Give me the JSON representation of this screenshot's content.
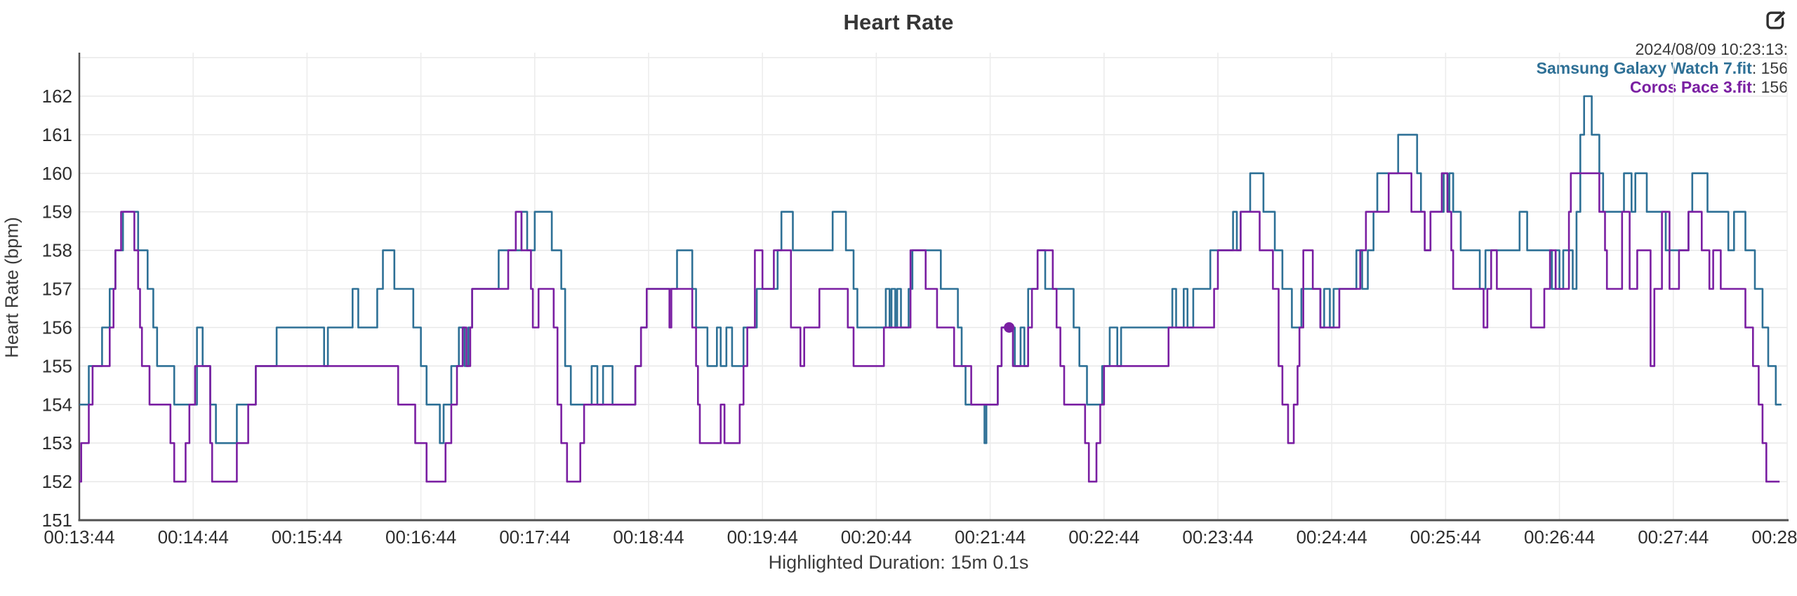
{
  "header": {
    "title": "Heart Rate"
  },
  "toolbar": {
    "edit_icon_name": "edit-square-pencil-icon"
  },
  "tooltip": {
    "timestamp": "2024/08/09 10:23:13:",
    "separator": ": ",
    "series": [
      {
        "label": "Samsung Galaxy Watch 7.fit",
        "value": "156"
      },
      {
        "label": "Coros Pace 3.fit",
        "value": "156"
      }
    ]
  },
  "footer": {
    "highlighted_duration": "Highlighted Duration: 15m 0.1s"
  },
  "chart_data": {
    "type": "line",
    "line_style": "step-after",
    "title": "Heart Rate",
    "xlabel": "",
    "ylabel": "Heart Rate (bpm)",
    "ylim": [
      151,
      163.2
    ],
    "y_ticks": [
      151,
      152,
      153,
      154,
      155,
      156,
      157,
      158,
      159,
      160,
      161,
      162
    ],
    "y_grid_extra": 163,
    "x_range_s": [
      0,
      900
    ],
    "x_tick_interval_s": 60,
    "x_ticks": [
      "00:13:44",
      "00:14:44",
      "00:15:44",
      "00:16:44",
      "00:17:44",
      "00:18:44",
      "00:19:44",
      "00:20:44",
      "00:21:44",
      "00:22:44",
      "00:23:44",
      "00:24:44",
      "00:25:44",
      "00:26:44",
      "00:27:44",
      "00:28:44"
    ],
    "grid": true,
    "legend_position": "top-right",
    "axis_color": "#515151",
    "grid_color": "#e8e8e8",
    "tick_label_color": "#2e2e2e",
    "highlight_point": {
      "series": "Coros Pace 3.fit",
      "t_s": 490,
      "value": 156
    },
    "series": [
      {
        "name": "Samsung Galaxy Watch 7.fit",
        "color": "#2e7096",
        "end_s": 897,
        "points": [
          [
            0,
            154
          ],
          [
            5,
            155
          ],
          [
            12,
            156
          ],
          [
            16,
            157
          ],
          [
            19,
            158
          ],
          [
            23,
            159
          ],
          [
            31,
            158
          ],
          [
            36,
            157
          ],
          [
            39,
            156
          ],
          [
            41,
            155
          ],
          [
            50,
            154
          ],
          [
            62,
            156
          ],
          [
            65,
            155
          ],
          [
            69,
            154
          ],
          [
            72,
            153
          ],
          [
            83,
            154
          ],
          [
            93,
            155
          ],
          [
            104,
            156
          ],
          [
            129,
            155
          ],
          [
            131,
            156
          ],
          [
            144,
            157
          ],
          [
            147,
            156
          ],
          [
            157,
            157
          ],
          [
            160,
            158
          ],
          [
            166,
            157
          ],
          [
            176,
            156
          ],
          [
            180,
            155
          ],
          [
            183,
            154
          ],
          [
            190,
            153
          ],
          [
            192,
            154
          ],
          [
            196,
            155
          ],
          [
            200,
            156
          ],
          [
            203,
            155
          ],
          [
            205,
            156
          ],
          [
            207,
            157
          ],
          [
            221,
            158
          ],
          [
            233,
            159
          ],
          [
            236,
            158
          ],
          [
            240,
            159
          ],
          [
            249,
            158
          ],
          [
            254,
            157
          ],
          [
            256,
            155
          ],
          [
            259,
            154
          ],
          [
            270,
            155
          ],
          [
            273,
            154
          ],
          [
            276,
            155
          ],
          [
            281,
            154
          ],
          [
            293,
            155
          ],
          [
            296,
            156
          ],
          [
            299,
            157
          ],
          [
            315,
            158
          ],
          [
            323,
            157
          ],
          [
            325,
            156
          ],
          [
            331,
            155
          ],
          [
            336,
            156
          ],
          [
            338,
            155
          ],
          [
            341,
            156
          ],
          [
            344,
            155
          ],
          [
            350,
            156
          ],
          [
            357,
            157
          ],
          [
            368,
            158
          ],
          [
            370,
            159
          ],
          [
            376,
            158
          ],
          [
            397,
            159
          ],
          [
            404,
            158
          ],
          [
            408,
            157
          ],
          [
            410,
            156
          ],
          [
            425,
            157
          ],
          [
            427,
            156
          ],
          [
            428,
            157
          ],
          [
            430,
            156
          ],
          [
            431,
            157
          ],
          [
            433,
            156
          ],
          [
            437,
            157
          ],
          [
            439,
            158
          ],
          [
            454,
            157
          ],
          [
            463,
            156
          ],
          [
            465,
            155
          ],
          [
            467,
            154
          ],
          [
            477,
            153
          ],
          [
            478,
            154
          ],
          [
            484,
            155
          ],
          [
            486,
            156
          ],
          [
            493,
            155
          ],
          [
            496,
            156
          ],
          [
            498,
            155
          ],
          [
            500,
            157
          ],
          [
            505,
            158
          ],
          [
            509,
            157
          ],
          [
            524,
            156
          ],
          [
            527,
            155
          ],
          [
            531,
            154
          ],
          [
            539,
            155
          ],
          [
            543,
            156
          ],
          [
            547,
            155
          ],
          [
            549,
            156
          ],
          [
            576,
            157
          ],
          [
            578,
            156
          ],
          [
            582,
            157
          ],
          [
            584,
            156
          ],
          [
            587,
            157
          ],
          [
            596,
            158
          ],
          [
            608,
            159
          ],
          [
            610,
            158
          ],
          [
            612,
            159
          ],
          [
            617,
            160
          ],
          [
            624,
            159
          ],
          [
            630,
            158
          ],
          [
            634,
            157
          ],
          [
            639,
            156
          ],
          [
            644,
            157
          ],
          [
            654,
            156
          ],
          [
            656,
            157
          ],
          [
            659,
            156
          ],
          [
            661,
            157
          ],
          [
            673,
            158
          ],
          [
            676,
            157
          ],
          [
            679,
            158
          ],
          [
            682,
            159
          ],
          [
            684,
            160
          ],
          [
            695,
            161
          ],
          [
            705,
            160
          ],
          [
            707,
            159
          ],
          [
            709,
            158
          ],
          [
            712,
            159
          ],
          [
            719,
            160
          ],
          [
            721,
            159
          ],
          [
            722,
            160
          ],
          [
            724,
            159
          ],
          [
            728,
            158
          ],
          [
            738,
            157
          ],
          [
            741,
            158
          ],
          [
            759,
            159
          ],
          [
            763,
            158
          ],
          [
            776,
            157
          ],
          [
            778,
            158
          ],
          [
            780,
            157
          ],
          [
            782,
            158
          ],
          [
            787,
            157
          ],
          [
            789,
            159
          ],
          [
            791,
            161
          ],
          [
            793,
            162
          ],
          [
            797,
            161
          ],
          [
            801,
            160
          ],
          [
            803,
            159
          ],
          [
            814,
            160
          ],
          [
            818,
            159
          ],
          [
            820,
            160
          ],
          [
            826,
            159
          ],
          [
            836,
            158
          ],
          [
            848,
            159
          ],
          [
            850,
            160
          ],
          [
            858,
            159
          ],
          [
            869,
            158
          ],
          [
            872,
            159
          ],
          [
            878,
            158
          ],
          [
            883,
            157
          ],
          [
            887,
            156
          ],
          [
            890,
            155
          ],
          [
            894,
            154
          ]
        ]
      },
      {
        "name": "Coros Pace 3.fit",
        "color": "#7a1fa2",
        "end_s": 896,
        "points": [
          [
            0,
            152
          ],
          [
            1,
            153
          ],
          [
            5,
            154
          ],
          [
            7,
            155
          ],
          [
            16,
            156
          ],
          [
            18,
            157
          ],
          [
            19,
            158
          ],
          [
            22,
            159
          ],
          [
            29,
            158
          ],
          [
            31,
            157
          ],
          [
            32,
            156
          ],
          [
            33,
            155
          ],
          [
            37,
            154
          ],
          [
            48,
            153
          ],
          [
            50,
            152
          ],
          [
            56,
            153
          ],
          [
            58,
            154
          ],
          [
            61,
            155
          ],
          [
            69,
            153
          ],
          [
            70,
            152
          ],
          [
            83,
            153
          ],
          [
            89,
            154
          ],
          [
            93,
            155
          ],
          [
            168,
            154
          ],
          [
            177,
            153
          ],
          [
            183,
            152
          ],
          [
            193,
            153
          ],
          [
            196,
            154
          ],
          [
            199,
            155
          ],
          [
            202,
            156
          ],
          [
            204,
            155
          ],
          [
            206,
            156
          ],
          [
            207,
            157
          ],
          [
            226,
            158
          ],
          [
            230,
            159
          ],
          [
            233,
            158
          ],
          [
            238,
            157
          ],
          [
            239,
            156
          ],
          [
            242,
            157
          ],
          [
            250,
            156
          ],
          [
            252,
            154
          ],
          [
            254,
            153
          ],
          [
            257,
            152
          ],
          [
            264,
            153
          ],
          [
            266,
            154
          ],
          [
            293,
            155
          ],
          [
            296,
            156
          ],
          [
            299,
            157
          ],
          [
            311,
            156
          ],
          [
            312,
            157
          ],
          [
            323,
            156
          ],
          [
            325,
            155
          ],
          [
            326,
            154
          ],
          [
            327,
            153
          ],
          [
            338,
            154
          ],
          [
            340,
            153
          ],
          [
            348,
            154
          ],
          [
            350,
            155
          ],
          [
            352,
            156
          ],
          [
            356,
            158
          ],
          [
            360,
            157
          ],
          [
            366,
            158
          ],
          [
            375,
            156
          ],
          [
            380,
            155
          ],
          [
            382,
            156
          ],
          [
            390,
            157
          ],
          [
            405,
            156
          ],
          [
            408,
            155
          ],
          [
            424,
            156
          ],
          [
            438,
            158
          ],
          [
            446,
            157
          ],
          [
            452,
            156
          ],
          [
            461,
            155
          ],
          [
            470,
            154
          ],
          [
            484,
            155
          ],
          [
            486,
            156
          ],
          [
            492,
            155
          ],
          [
            500,
            156
          ],
          [
            502,
            157
          ],
          [
            505,
            158
          ],
          [
            513,
            157
          ],
          [
            515,
            156
          ],
          [
            517,
            155
          ],
          [
            519,
            154
          ],
          [
            530,
            153
          ],
          [
            532,
            152
          ],
          [
            536,
            153
          ],
          [
            538,
            154
          ],
          [
            540,
            155
          ],
          [
            574,
            156
          ],
          [
            598,
            157
          ],
          [
            600,
            158
          ],
          [
            612,
            159
          ],
          [
            622,
            158
          ],
          [
            629,
            157
          ],
          [
            632,
            155
          ],
          [
            634,
            154
          ],
          [
            637,
            153
          ],
          [
            640,
            154
          ],
          [
            642,
            155
          ],
          [
            643,
            156
          ],
          [
            645,
            158
          ],
          [
            650,
            157
          ],
          [
            654,
            156
          ],
          [
            664,
            157
          ],
          [
            675,
            158
          ],
          [
            678,
            159
          ],
          [
            690,
            160
          ],
          [
            702,
            159
          ],
          [
            709,
            158
          ],
          [
            712,
            159
          ],
          [
            718,
            160
          ],
          [
            721,
            159
          ],
          [
            723,
            158
          ],
          [
            724,
            157
          ],
          [
            740,
            156
          ],
          [
            742,
            157
          ],
          [
            744,
            158
          ],
          [
            747,
            157
          ],
          [
            765,
            156
          ],
          [
            772,
            157
          ],
          [
            775,
            158
          ],
          [
            778,
            157
          ],
          [
            785,
            159
          ],
          [
            786,
            160
          ],
          [
            801,
            159
          ],
          [
            804,
            158
          ],
          [
            805,
            157
          ],
          [
            813,
            159
          ],
          [
            817,
            157
          ],
          [
            821,
            158
          ],
          [
            828,
            155
          ],
          [
            830,
            157
          ],
          [
            834,
            159
          ],
          [
            838,
            157
          ],
          [
            843,
            158
          ],
          [
            848,
            159
          ],
          [
            855,
            158
          ],
          [
            859,
            157
          ],
          [
            861,
            158
          ],
          [
            865,
            157
          ],
          [
            878,
            156
          ],
          [
            882,
            155
          ],
          [
            885,
            154
          ],
          [
            887,
            153
          ],
          [
            889,
            152
          ]
        ]
      }
    ]
  }
}
